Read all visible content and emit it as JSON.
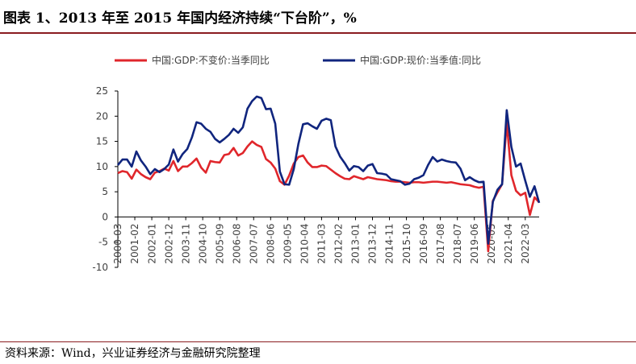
{
  "header": {
    "title": "图表 1、2013 年至 2015 年国内经济持续“下台阶”，%"
  },
  "footer": {
    "source": "资料来源：Wind，兴业证券经济与金融研究院整理"
  },
  "colors": {
    "series1": "#e0262b",
    "series2": "#10257e",
    "axis": "#000000",
    "rule": "#8a1c20"
  },
  "chart_data": {
    "type": "line",
    "title": "",
    "xlabel": "",
    "ylabel": "",
    "ylim": [
      -10,
      25
    ],
    "yticks": [
      "25",
      "20",
      "15",
      "10",
      "5",
      "0",
      "-5",
      "-10"
    ],
    "grid": false,
    "legend": "top",
    "x_ticks": [
      "2000-03",
      "2001-02",
      "2002-01",
      "2002-12",
      "2003-11",
      "2004-10",
      "2005-09",
      "2006-08",
      "2007-07",
      "2008-06",
      "2009-05",
      "2010-04",
      "2011-03",
      "2012-02",
      "2013-01",
      "2013-12",
      "2014-11",
      "2015-10",
      "2016-09",
      "2017-08",
      "2018-07",
      "2019-06",
      "2020-05",
      "2021-04",
      "2022-03"
    ],
    "x_range": [
      "2000Q1",
      "2022Q4"
    ],
    "series": [
      {
        "name": "中国:GDP:不变价:当季同比",
        "values": [
          8.7,
          9.1,
          8.9,
          7.6,
          9.4,
          8.5,
          7.9,
          7.5,
          8.8,
          9.1,
          9.6,
          9.2,
          11.1,
          9.1,
          10.0,
          10.0,
          10.7,
          11.6,
          9.8,
          8.8,
          11.1,
          10.9,
          10.8,
          12.3,
          12.5,
          13.7,
          12.2,
          12.7,
          14.0,
          15.0,
          14.3,
          13.9,
          11.5,
          10.8,
          9.6,
          7.1,
          6.4,
          8.2,
          10.6,
          11.9,
          12.2,
          10.8,
          9.9,
          9.9,
          10.2,
          10.1,
          9.4,
          8.7,
          8.1,
          7.6,
          7.5,
          8.1,
          7.8,
          7.5,
          7.9,
          7.7,
          7.5,
          7.4,
          7.3,
          7.1,
          7.0,
          7.0,
          6.9,
          6.8,
          6.9,
          6.9,
          6.8,
          6.9,
          7.0,
          7.0,
          6.9,
          6.8,
          6.9,
          6.7,
          6.5,
          6.4,
          6.3,
          6.0,
          5.8,
          6.0,
          -6.8,
          3.2,
          4.9,
          6.5,
          18.7,
          8.3,
          5.2,
          4.3,
          4.8,
          0.4,
          3.9,
          2.9
        ]
      },
      {
        "name": "中国:GDP:现价:当季值:同比",
        "values": [
          10.3,
          11.4,
          11.4,
          10.0,
          13.0,
          11.2,
          10.0,
          8.5,
          9.5,
          8.9,
          9.5,
          10.4,
          13.4,
          11.0,
          12.5,
          13.5,
          15.8,
          18.8,
          18.5,
          17.5,
          16.9,
          15.5,
          14.8,
          15.5,
          16.3,
          17.5,
          16.7,
          17.8,
          21.5,
          23.0,
          23.9,
          23.6,
          21.4,
          21.5,
          18.5,
          9.0,
          6.5,
          6.4,
          9.5,
          14.5,
          18.4,
          18.6,
          18.0,
          17.5,
          19.1,
          19.5,
          19.2,
          14.0,
          12.0,
          10.7,
          9.2,
          10.1,
          9.9,
          9.1,
          10.2,
          10.5,
          8.7,
          8.6,
          8.4,
          7.5,
          7.3,
          7.1,
          6.4,
          6.6,
          7.5,
          7.8,
          8.3,
          10.3,
          11.9,
          11.0,
          11.4,
          11.1,
          10.9,
          10.8,
          9.6,
          7.3,
          7.9,
          7.3,
          6.9,
          7.0,
          -5.3,
          3.0,
          5.4,
          6.5,
          21.2,
          13.9,
          10.0,
          10.6,
          7.2,
          4.0,
          6.1,
          2.8
        ]
      }
    ]
  }
}
